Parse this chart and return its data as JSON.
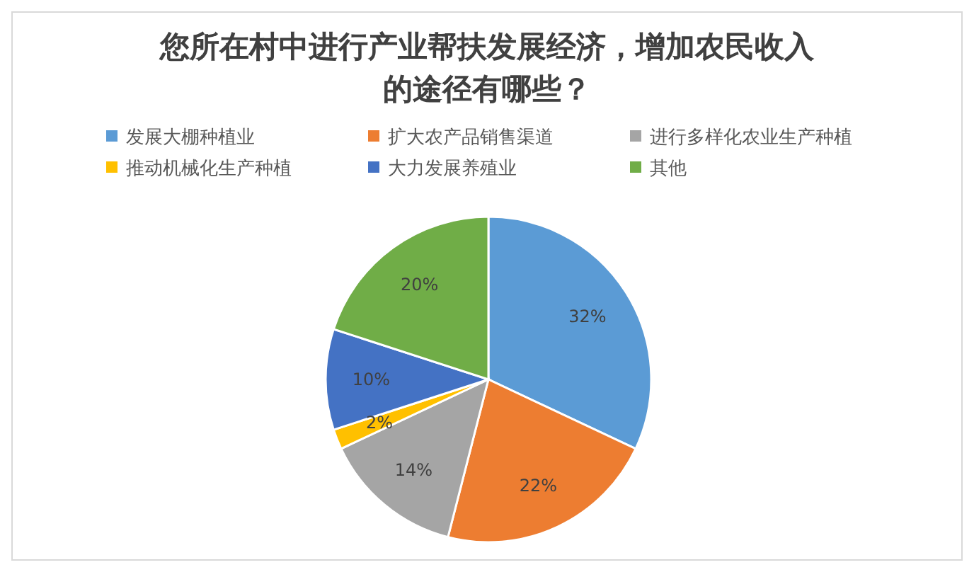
{
  "chart_data": {
    "type": "pie",
    "title": "您所在村中进行产业帮扶发展经济，增加农民收入的途径有哪些？",
    "categories": [
      "发展大棚种植业",
      "扩大农产品销售渠道",
      "进行多样化农业生产种植",
      "推动机械化生产种植",
      "大力发展养殖业",
      "其他"
    ],
    "values": [
      32,
      22,
      14,
      2,
      10,
      20
    ],
    "colors": [
      "#5b9bd5",
      "#ed7d31",
      "#a5a5a5",
      "#ffc000",
      "#4472c4",
      "#70ad47"
    ],
    "value_labels": [
      "32%",
      "22%",
      "14%",
      "2%",
      "10%",
      "20%"
    ],
    "legend": "top"
  }
}
